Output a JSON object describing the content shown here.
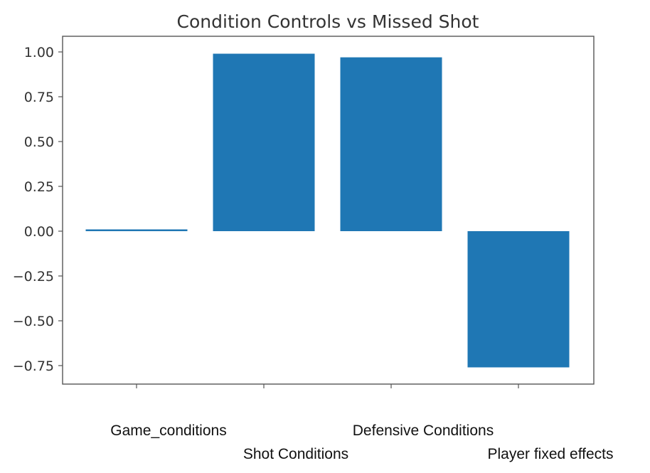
{
  "chart_data": {
    "type": "bar",
    "title": "Condition Controls vs Missed Shot",
    "xlabel": "",
    "ylabel": "",
    "categories": [
      "Game_conditions",
      "Shot Conditions",
      "Defensive Conditions",
      "Player fixed effects"
    ],
    "values": [
      0.01,
      0.99,
      0.97,
      -0.76
    ],
    "ylim": [
      -0.85,
      1.07
    ],
    "yticks": [
      1.0,
      0.75,
      0.5,
      0.25,
      0.0,
      -0.25,
      -0.5,
      -0.75
    ],
    "ytick_labels": [
      "1.00",
      "0.75",
      "0.50",
      "0.25",
      "0.00",
      "−0.25",
      "−0.50",
      "−0.75"
    ],
    "grid": false,
    "legend": "none",
    "bar_color": "#1f77b4"
  }
}
